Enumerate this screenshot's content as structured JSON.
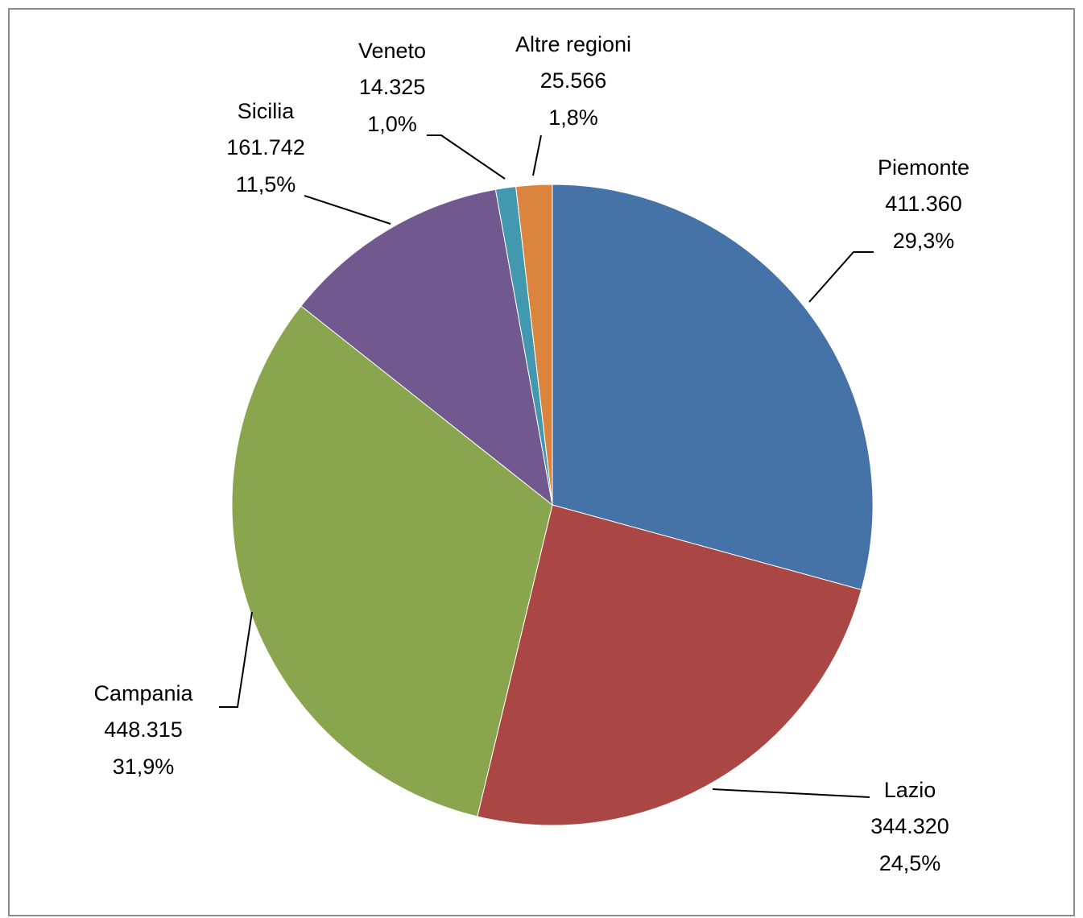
{
  "chart_data": {
    "type": "pie",
    "categories": [
      "Piemonte",
      "Lazio",
      "Campania",
      "Sicilia",
      "Veneto",
      "Altre regioni"
    ],
    "values": [
      411360,
      344320,
      448315,
      161742,
      14325,
      25566
    ],
    "value_labels": [
      "411.360",
      "344.320",
      "448.315",
      "161.742",
      "14.325",
      "25.566"
    ],
    "percentages": [
      29.3,
      24.5,
      31.9,
      11.5,
      1.0,
      1.8
    ],
    "percentage_labels": [
      "29,3%",
      "24,5%",
      "31,9%",
      "11,5%",
      "1,0%",
      "1,8%"
    ],
    "colors": [
      "#4572a7",
      "#aa4643",
      "#89a54e",
      "#71588f",
      "#4198af",
      "#db843d"
    ]
  }
}
